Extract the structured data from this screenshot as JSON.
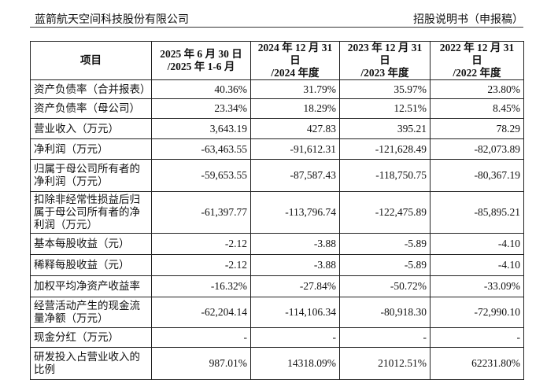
{
  "header": {
    "company": "蓝箭航天空间科技股份有限公司",
    "doc": "招股说明书（申报稿）"
  },
  "table": {
    "headers": [
      [
        "项目"
      ],
      [
        "2025 年 6 月 30 日",
        "/2025 年 1-6 月"
      ],
      [
        "2024 年 12 月 31 日",
        "/2024 年度"
      ],
      [
        "2023 年 12 月 31 日",
        "/2023 年度"
      ],
      [
        "2022 年 12 月 31 日",
        "/2022 年度"
      ]
    ],
    "rows": [
      [
        "资产负债率（合并报表）",
        "40.36%",
        "31.79%",
        "35.97%",
        "23.80%"
      ],
      [
        "资产负债率（母公司）",
        "23.34%",
        "18.29%",
        "12.51%",
        "8.45%"
      ],
      [
        "营业收入（万元）",
        "3,643.19",
        "427.83",
        "395.21",
        "78.29"
      ],
      [
        "净利润（万元）",
        "-63,463.55",
        "-91,612.31",
        "-121,628.49",
        "-82,073.89"
      ],
      [
        "归属于母公司所有者的净利润（万元）",
        "-59,653.55",
        "-87,587.43",
        "-118,750.75",
        "-80,367.19"
      ],
      [
        "扣除非经常性损益后归属于母公司所有者的净利润（万元）",
        "-61,397.77",
        "-113,796.74",
        "-122,475.89",
        "-85,895.21"
      ],
      [
        "基本每股收益（元）",
        "-2.12",
        "-3.88",
        "-5.89",
        "-4.10"
      ],
      [
        "稀释每股收益（元）",
        "-2.12",
        "-3.88",
        "-5.89",
        "-4.10"
      ],
      [
        "加权平均净资产收益率",
        "-16.32%",
        "-27.84%",
        "-50.72%",
        "-33.09%"
      ],
      [
        "经营活动产生的现金流量净额（万元）",
        "-62,204.14",
        "-114,106.34",
        "-80,918.30",
        "-72,990.10"
      ],
      [
        "现金分红（万元）",
        "-",
        "-",
        "-",
        "-"
      ],
      [
        "研发投入占营业收入的比例",
        "987.01%",
        "14318.09%",
        "21012.51%",
        "62231.80%"
      ]
    ]
  }
}
